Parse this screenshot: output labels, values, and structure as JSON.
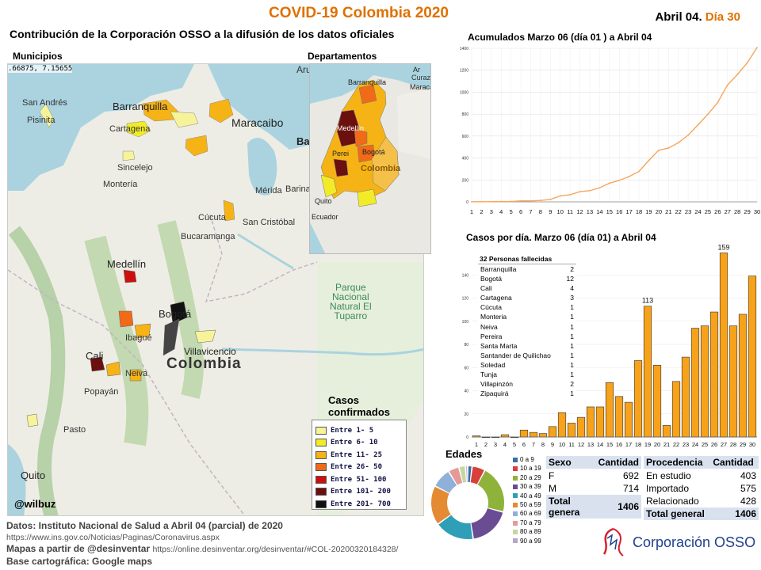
{
  "header": {
    "title": "COVID-19 Colombia 2020",
    "date": "Abril 04.",
    "day": "Día 30",
    "subtitle": "Contribución de la Corporación OSSO a la difusión de los datos oficiales"
  },
  "maps": {
    "municipios_label": "Municipios",
    "departamentos_label": "Departamentos",
    "coords": ".66875, 7.15655",
    "handle": "@wilbuz",
    "big_places": {
      "san_andres": "San Andrés",
      "pisinita": "Pisinita",
      "barranquilla": "Barranquilla",
      "cartagena": "Cartagena",
      "sincelejo": "Sincelejo",
      "monteria": "Montería",
      "maracaibo": "Maracaibo",
      "merida": "Mérida",
      "barinas": "Barina",
      "cucuta": "Cúcuta",
      "san_cristobal": "San Cristóbal",
      "bucaramanga": "Bucaramanga",
      "medellin": "Medellín",
      "bogota": "Bogotá",
      "ibague": "Ibagué",
      "villavicencio": "Villavicencio",
      "cali": "Cali",
      "neiva": "Neiva",
      "popayan": "Popayán",
      "pasto": "Pasto",
      "quito": "Quito",
      "colombia": "Colombia",
      "parque": "Parque\nNacional\nNatural El\nTuparro",
      "aruba": "Aru",
      "ba": "Ba"
    },
    "small_places": {
      "barranquilla": "Barranquilla",
      "curazao": "Curazao",
      "maracaibo": "Maracaibo",
      "medellin": "Medellín",
      "pereira": "Perei",
      "bogota": "Bogotá",
      "colombia": "Colombia",
      "quito": "Quito",
      "ecuador": "Ecuador",
      "ar": "Ar"
    },
    "legend_title": "Casos\nconfirmados",
    "legend": [
      {
        "label": "Entre 1- 5",
        "color": "#f7f39a"
      },
      {
        "label": "Entre 6- 10",
        "color": "#f2ec28"
      },
      {
        "label": "Entre 11- 25",
        "color": "#f5b315"
      },
      {
        "label": "Entre 26- 50",
        "color": "#f06a18"
      },
      {
        "label": "Entre 51- 100",
        "color": "#cc0f0f"
      },
      {
        "label": "Entre 101- 200",
        "color": "#6b0f0f"
      },
      {
        "label": "Entre 201- 700",
        "color": "#111111"
      }
    ]
  },
  "chart_data": [
    {
      "type": "line",
      "title": "Acumulados  Marzo 06 (día 01 ) a Abril 04",
      "x": [
        1,
        2,
        3,
        4,
        5,
        6,
        7,
        8,
        9,
        10,
        11,
        12,
        13,
        14,
        15,
        16,
        17,
        18,
        19,
        20,
        21,
        22,
        23,
        24,
        25,
        26,
        27,
        28,
        29,
        30
      ],
      "ytick_labels": [
        "0",
        "200",
        "400",
        "600",
        "800",
        "1000",
        "1200",
        "1400"
      ],
      "ylim": [
        0,
        1400
      ],
      "series": [
        {
          "values": [
            1,
            1,
            1,
            3,
            3,
            9,
            9,
            13,
            22,
            54,
            65,
            93,
            102,
            128,
            170,
            196,
            231,
            277,
            378,
            470,
            491,
            539,
            608,
            702,
            798,
            906,
            1065,
            1161,
            1267,
            1406
          ],
          "color": "#f5a65b"
        }
      ]
    },
    {
      "type": "bar",
      "title": "Casos por día. Marzo 06 (día 01) a Abril 04",
      "categories": [
        "1",
        "2",
        "3",
        "4",
        "5",
        "6",
        "7",
        "8",
        "9",
        "10",
        "11",
        "12",
        "13",
        "14",
        "15",
        "16",
        "17",
        "18",
        "19",
        "20",
        "21",
        "22",
        "23",
        "24",
        "25",
        "26",
        "27",
        "28",
        "29",
        "30"
      ],
      "ytick_labels": [
        "0",
        "20",
        "40",
        "60",
        "80",
        "100",
        "120",
        "140"
      ],
      "ylim": [
        0,
        160
      ],
      "series": [
        {
          "values": [
            1,
            0,
            0,
            2,
            0,
            6,
            4,
            3,
            9,
            21,
            12,
            17,
            26,
            26,
            47,
            35,
            30,
            66,
            113,
            62,
            10,
            48,
            69,
            94,
            96,
            108,
            159,
            96,
            106,
            139
          ],
          "color": "#f7a21b"
        }
      ],
      "annotations": [
        {
          "x": "19",
          "text": "113"
        },
        {
          "x": "27",
          "text": "159"
        }
      ]
    },
    {
      "type": "pie",
      "title": "Edades",
      "labels": [
        "0 a 9",
        "10 a 19",
        "20 a 29",
        "30 a 39",
        "40 a 49",
        "50 a 59",
        "60 a 69",
        "70 a 79",
        "80 a 89",
        "90 a 99"
      ],
      "values": [
        2,
        6,
        22,
        19,
        18,
        18,
        9,
        5,
        3,
        1
      ],
      "colors": [
        "#3a6ea5",
        "#d9403b",
        "#8fb33a",
        "#6a4c93",
        "#2f9fb8",
        "#e48a32",
        "#8fb0d8",
        "#e59a98",
        "#c4d7a0",
        "#b5a6cb"
      ]
    }
  ],
  "fallecidas": {
    "title": "32 Personas fallecidas",
    "rows": [
      [
        "Barranquilla",
        "2"
      ],
      [
        "Bogotá",
        "12"
      ],
      [
        "Cali",
        "4"
      ],
      [
        "Cartagena",
        "3"
      ],
      [
        "Cúcuta",
        "1"
      ],
      [
        "Monteria",
        "1"
      ],
      [
        "Neiva",
        "1"
      ],
      [
        "Pereira",
        "1"
      ],
      [
        "Santa Marta",
        "1"
      ],
      [
        "Santander de Quilichao",
        "1"
      ],
      [
        "Soledad",
        "1"
      ],
      [
        "Tunja",
        "1"
      ],
      [
        "Villapinzón",
        "2"
      ],
      [
        "Zipaquirá",
        "1"
      ]
    ]
  },
  "sexo": {
    "h1": "Sexo",
    "h2": "Cantidad",
    "rows": [
      [
        "F",
        "692"
      ],
      [
        "M",
        "714"
      ]
    ],
    "total_label": "Total genera",
    "total": "1406"
  },
  "procedencia": {
    "h1": "Procedencia",
    "h2": "Cantidad",
    "rows": [
      [
        "En estudio",
        "403"
      ],
      [
        "Importado",
        "575"
      ],
      [
        "Relacionado",
        "428"
      ]
    ],
    "total_label": "Total general",
    "total": "1406"
  },
  "credits": {
    "l1": "Datos: Instituto Nacional de Salud a Abril 04 (parcial) de 2020",
    "l2": "https://www.ins.gov.co/Noticias/Paginas/Coronavirus.aspx",
    "l3a": "Mapas a partir de @desinventar",
    "l3b": "https://online.desinventar.org/desinventar/#COL-20200320184328/",
    "l4": "Base cartográfica: Google  maps"
  },
  "logo": {
    "name": "Corporación OSSO"
  }
}
